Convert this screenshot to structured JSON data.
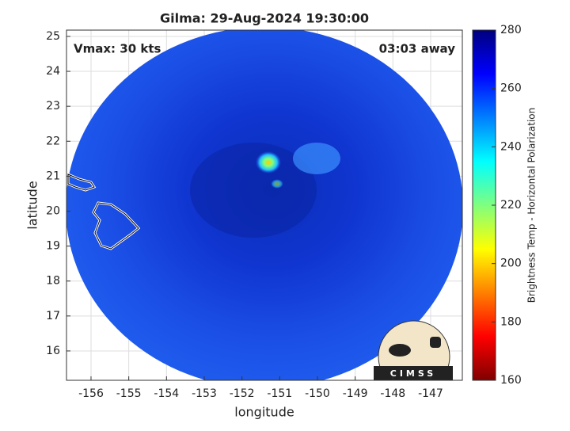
{
  "chart_data": {
    "type": "image-map",
    "title": "Gilma: 29-Aug-2024 19:30:00",
    "x_label": "longitude",
    "y_label": "latitude",
    "xlim": [
      -156.65,
      -146.16
    ],
    "ylim": [
      15.16,
      25.18
    ],
    "xticks": [
      -156,
      -155,
      -154,
      -153,
      -152,
      -151,
      -150,
      -149,
      -148,
      -147
    ],
    "yticks": [
      16,
      17,
      18,
      19,
      20,
      21,
      22,
      23,
      24,
      25
    ],
    "grid": true,
    "annotations": [
      "Vmax: 30 kts",
      "03:03 away"
    ],
    "colorbar": {
      "label": "Brightness Temp - Horizontal Polarization",
      "colormap": "jet",
      "lim": [
        160,
        280
      ],
      "ticks": [
        160,
        180,
        200,
        220,
        240,
        260,
        280
      ]
    },
    "logo": "CIMSS"
  }
}
